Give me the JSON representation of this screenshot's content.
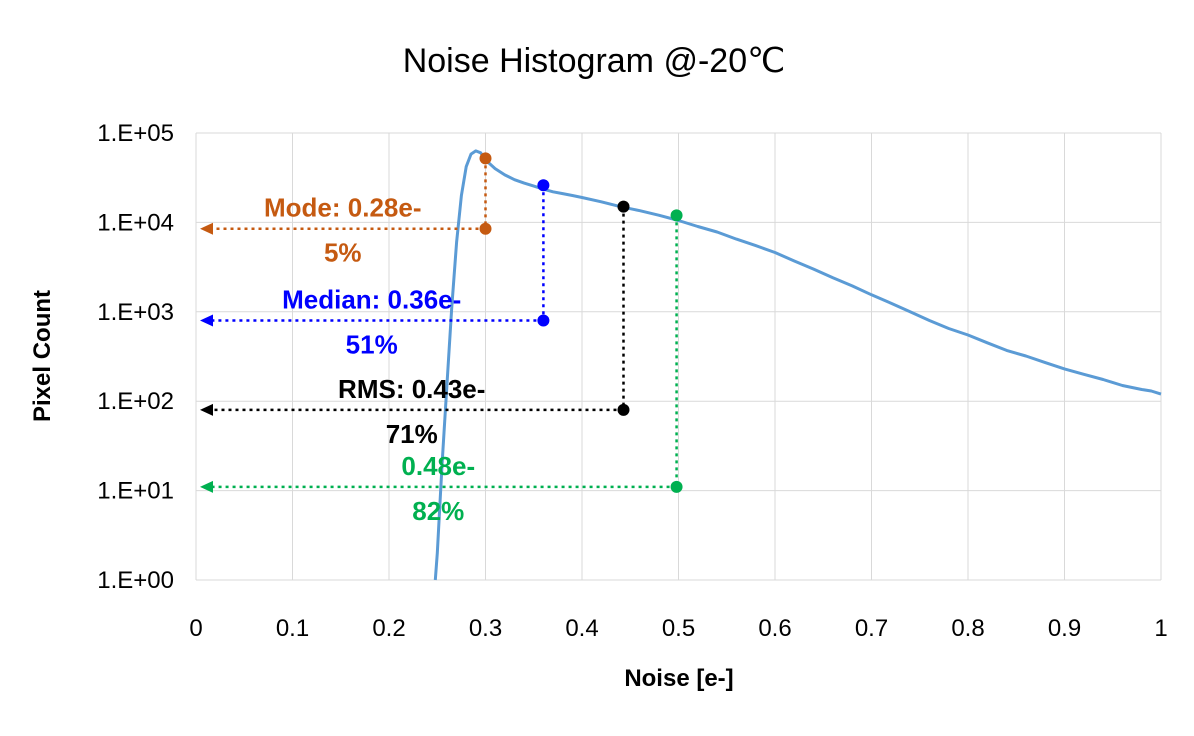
{
  "chart_data": {
    "type": "line",
    "title": "Noise Histogram  @-20℃",
    "xlabel": "Noise [e-]",
    "ylabel": "Pixel Count",
    "xlim": [
      0,
      1
    ],
    "ylim": [
      1,
      100000
    ],
    "yscale": "log",
    "grid": true,
    "x_ticks": [
      0,
      0.1,
      0.2,
      0.3,
      0.4,
      0.5,
      0.6,
      0.7,
      0.8,
      0.9,
      1
    ],
    "x_tick_labels": [
      "0",
      "0.1",
      "0.2",
      "0.3",
      "0.4",
      "0.5",
      "0.6",
      "0.7",
      "0.8",
      "0.9",
      "1"
    ],
    "y_ticks": [
      1,
      10,
      100,
      1000,
      10000,
      100000
    ],
    "y_tick_labels": [
      "1.E+00",
      "1.E+01",
      "1.E+02",
      "1.E+03",
      "1.E+04",
      "1.E+05"
    ],
    "series": [
      {
        "color": "#5b9bd5",
        "x": [
          0.248,
          0.25,
          0.252,
          0.255,
          0.26,
          0.265,
          0.27,
          0.275,
          0.28,
          0.285,
          0.29,
          0.295,
          0.3,
          0.31,
          0.32,
          0.33,
          0.34,
          0.35,
          0.36,
          0.37,
          0.38,
          0.39,
          0.4,
          0.42,
          0.44,
          0.46,
          0.48,
          0.5,
          0.52,
          0.54,
          0.56,
          0.58,
          0.6,
          0.62,
          0.64,
          0.66,
          0.68,
          0.7,
          0.72,
          0.74,
          0.76,
          0.78,
          0.8,
          0.82,
          0.84,
          0.86,
          0.88,
          0.9,
          0.92,
          0.94,
          0.96,
          0.98,
          0.99,
          1.0
        ],
        "y": [
          1,
          2,
          5,
          20,
          150,
          1100,
          6000,
          20000,
          42000,
          58000,
          63000,
          60000,
          50000,
          40000,
          34000,
          30000,
          27500,
          25500,
          23500,
          22000,
          21000,
          20000,
          19000,
          17000,
          15000,
          13500,
          12000,
          10500,
          9000,
          7800,
          6500,
          5500,
          4600,
          3700,
          3000,
          2400,
          1950,
          1550,
          1250,
          1000,
          800,
          650,
          550,
          450,
          370,
          320,
          270,
          230,
          200,
          175,
          150,
          135,
          130,
          120
        ]
      }
    ],
    "annotations": [
      {
        "label": "Mode: 0.28e-",
        "percent": "5%",
        "color": "#c55a11",
        "x": 0.3,
        "y_top": 52000,
        "y_arrow": 8500
      },
      {
        "label": "Median: 0.36e-",
        "percent": "51%",
        "color": "#0000ff",
        "x": 0.36,
        "y_top": 26000,
        "y_arrow": 800
      },
      {
        "label": "RMS: 0.43e-",
        "percent": "71%",
        "color": "#000000",
        "x": 0.443,
        "y_top": 15000,
        "y_arrow": 80
      },
      {
        "label": "0.48e-",
        "percent": "82%",
        "color": "#00b050",
        "x": 0.498,
        "y_top": 12000,
        "y_arrow": 11
      }
    ]
  }
}
